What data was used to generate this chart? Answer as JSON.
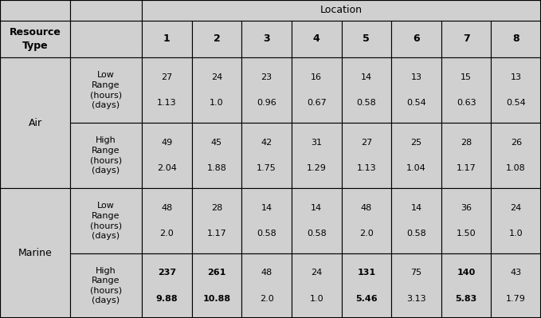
{
  "bg_color": "#d0d0d0",
  "locations": [
    "1",
    "2",
    "3",
    "4",
    "5",
    "6",
    "7",
    "8"
  ],
  "rows": [
    {
      "resource": "Air",
      "range_type": "Low\nRange\n(hours)\n(days)",
      "values_line1": [
        "27",
        "24",
        "23",
        "16",
        "14",
        "13",
        "15",
        "13"
      ],
      "values_line2": [
        "1.13",
        "1.0",
        "0.96",
        "0.67",
        "0.58",
        "0.54",
        "0.63",
        "0.54"
      ],
      "bold_line1": [
        false,
        false,
        false,
        false,
        false,
        false,
        false,
        false
      ],
      "bold_line2": [
        false,
        false,
        false,
        false,
        false,
        false,
        false,
        false
      ]
    },
    {
      "resource": "Air",
      "range_type": "High\nRange\n(hours)\n(days)",
      "values_line1": [
        "49",
        "45",
        "42",
        "31",
        "27",
        "25",
        "28",
        "26"
      ],
      "values_line2": [
        "2.04",
        "1.88",
        "1.75",
        "1.29",
        "1.13",
        "1.04",
        "1.17",
        "1.08"
      ],
      "bold_line1": [
        false,
        false,
        false,
        false,
        false,
        false,
        false,
        false
      ],
      "bold_line2": [
        false,
        false,
        false,
        false,
        false,
        false,
        false,
        false
      ]
    },
    {
      "resource": "Marine",
      "range_type": "Low\nRange\n(hours)\n(days)",
      "values_line1": [
        "48",
        "28",
        "14",
        "14",
        "48",
        "14",
        "36",
        "24"
      ],
      "values_line2": [
        "2.0",
        "1.17",
        "0.58",
        "0.58",
        "2.0",
        "0.58",
        "1.50",
        "1.0"
      ],
      "bold_line1": [
        false,
        false,
        false,
        false,
        false,
        false,
        false,
        false
      ],
      "bold_line2": [
        false,
        false,
        false,
        false,
        false,
        false,
        false,
        false
      ]
    },
    {
      "resource": "Marine",
      "range_type": "High\nRange\n(hours)\n(days)",
      "values_line1": [
        "237",
        "261",
        "48",
        "24",
        "131",
        "75",
        "140",
        "43"
      ],
      "values_line2": [
        "9.88",
        "10.88",
        "2.0",
        "1.0",
        "5.46",
        "3.13",
        "5.83",
        "1.79"
      ],
      "bold_line1": [
        true,
        true,
        false,
        false,
        true,
        false,
        true,
        false
      ],
      "bold_line2": [
        true,
        true,
        false,
        false,
        true,
        false,
        true,
        false
      ]
    }
  ],
  "font_size": 8.0,
  "header_font_size": 9.0,
  "figw": 6.79,
  "figh": 3.99,
  "dpi": 100
}
